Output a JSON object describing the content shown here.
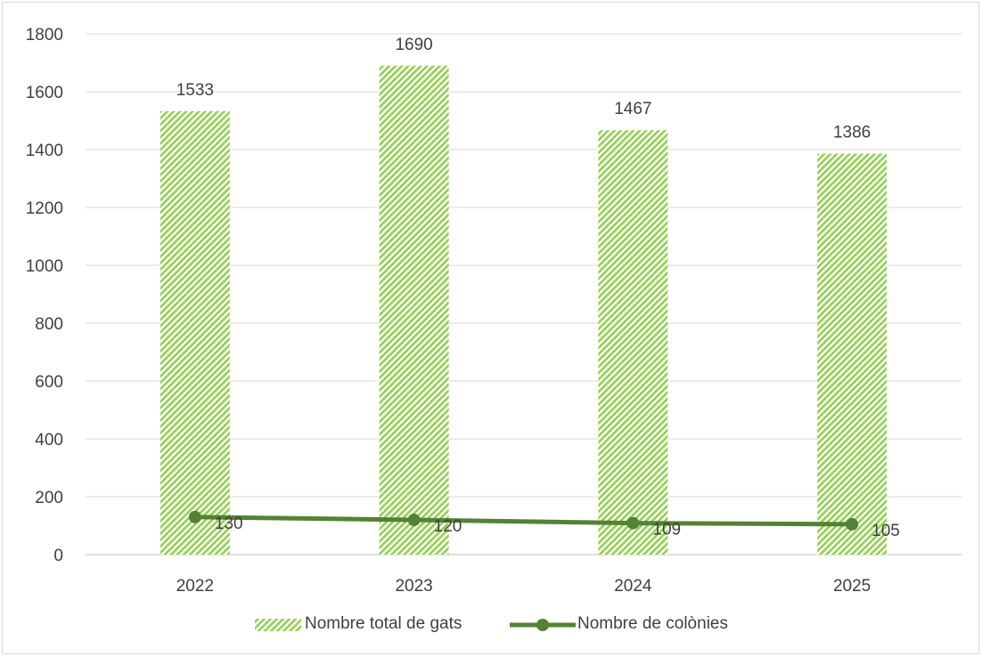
{
  "chart_data": {
    "type": "bar",
    "categories": [
      "2022",
      "2023",
      "2024",
      "2025"
    ],
    "series": [
      {
        "name": "Nombre total de gats",
        "kind": "bar",
        "values": [
          1533,
          1690,
          1467,
          1386
        ],
        "color": "#92d050",
        "fill_pattern": "diagonal-stripes"
      },
      {
        "name": "Nombre de colònies",
        "kind": "line",
        "values": [
          130,
          120,
          109,
          105
        ],
        "color": "#548235",
        "marker": "circle"
      }
    ],
    "title": "",
    "xlabel": "",
    "ylabel": "",
    "ylim": [
      0,
      1800
    ],
    "yticks": [
      0,
      200,
      400,
      600,
      800,
      1000,
      1200,
      1400,
      1600,
      1800
    ],
    "grid": true,
    "legend_position": "bottom"
  }
}
